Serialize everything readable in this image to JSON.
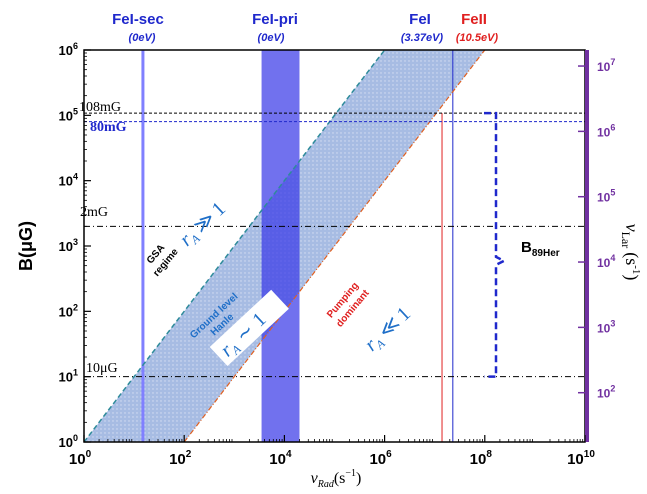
{
  "chart_data": {
    "type": "area",
    "x": {
      "scale": "log",
      "range": [
        1,
        10000000000
      ],
      "ticks": [
        {
          "value": 1,
          "base": "10",
          "exp": "0"
        },
        {
          "value": 100,
          "base": "10",
          "exp": "2"
        },
        {
          "value": 10000,
          "base": "10",
          "exp": "4"
        },
        {
          "value": 1000000,
          "base": "10",
          "exp": "6"
        },
        {
          "value": 100000000,
          "base": "10",
          "exp": "8"
        },
        {
          "value": 10000000000,
          "base": "10",
          "exp": "10"
        }
      ],
      "label_main": "ν",
      "label_sub": "Rad",
      "label_unit": "(s",
      "label_unit_exp": "−1",
      "label_close": ")"
    },
    "y": {
      "scale": "log",
      "range": [
        1,
        1000000
      ],
      "ticks": [
        {
          "value": 1,
          "base": "10",
          "exp": "0"
        },
        {
          "value": 10,
          "base": "10",
          "exp": "1"
        },
        {
          "value": 100,
          "base": "10",
          "exp": "2"
        },
        {
          "value": 1000,
          "base": "10",
          "exp": "3"
        },
        {
          "value": 10000,
          "base": "10",
          "exp": "4"
        },
        {
          "value": 100000,
          "base": "10",
          "exp": "5"
        },
        {
          "value": 1000000,
          "base": "10",
          "exp": "6"
        }
      ],
      "label": "B(μG)"
    },
    "y2": {
      "scale": "log",
      "ticks": [
        {
          "value": 100,
          "base": "10",
          "exp": "2"
        },
        {
          "value": 1000,
          "base": "10",
          "exp": "3"
        },
        {
          "value": 10000,
          "base": "10",
          "exp": "4"
        },
        {
          "value": 100000,
          "base": "10",
          "exp": "5"
        },
        {
          "value": 1000000,
          "base": "10",
          "exp": "6"
        },
        {
          "value": 10000000,
          "base": "10",
          "exp": "7"
        }
      ],
      "label_main": "ν",
      "label_sub": "Lar",
      "label_unit": "(s",
      "label_unit_exp": "-1",
      "label_close": ")",
      "color": "#7030a0"
    },
    "band": {
      "upper_line": [
        [
          1,
          1
        ],
        [
          1000000,
          1000000
        ]
      ],
      "lower_line": [
        [
          100,
          1
        ],
        [
          100000000,
          1000000
        ]
      ],
      "fill_color": "#9db4e0",
      "upper_color": "#2e8b9a",
      "lower_color": "#e06020"
    },
    "vertical_markers": [
      {
        "name": "FeI-sec",
        "energy": "(0eV)",
        "x_from": 14,
        "x_to": 16,
        "color": "#8080ff"
      },
      {
        "name": "FeI-pri",
        "energy": "(0eV)",
        "x_from": 3500,
        "x_to": 20000,
        "color": "#4040e8"
      },
      {
        "name": "FeI",
        "energy": "(3.37eV)",
        "x": 23000000,
        "color": "#1f28cc"
      },
      {
        "name": "FeII",
        "energy": "(10.5eV)",
        "x": 14000000,
        "color": "#e02020"
      }
    ],
    "horizontal_lines": [
      {
        "label": "108mG",
        "value": 108000,
        "style": "dashed",
        "color": "#000000"
      },
      {
        "label": "80mG",
        "value": 80000,
        "style": "dashed",
        "color": "#1f28cc"
      },
      {
        "label": "2mG",
        "value": 2000,
        "style": "dashdot",
        "color": "#000000"
      },
      {
        "label": "10μG",
        "value": 10,
        "style": "dashdot",
        "color": "#000000"
      }
    ],
    "bracket": {
      "label_main": "B",
      "label_sub": "89Her",
      "from": 10,
      "to": 108000,
      "color": "#1f28cc"
    },
    "annotations": {
      "gsa_1": "GSA",
      "gsa_2": "regime",
      "gl_1": "Ground level",
      "gl_2": "Hanle",
      "pump_1": "Pumping",
      "pump_2": "dominant",
      "r_symbol": "r",
      "r_sub": "A",
      "rel_gg": "≫",
      "rel_sim": "∼",
      "rel_ll": "≪",
      "one": "1"
    }
  }
}
